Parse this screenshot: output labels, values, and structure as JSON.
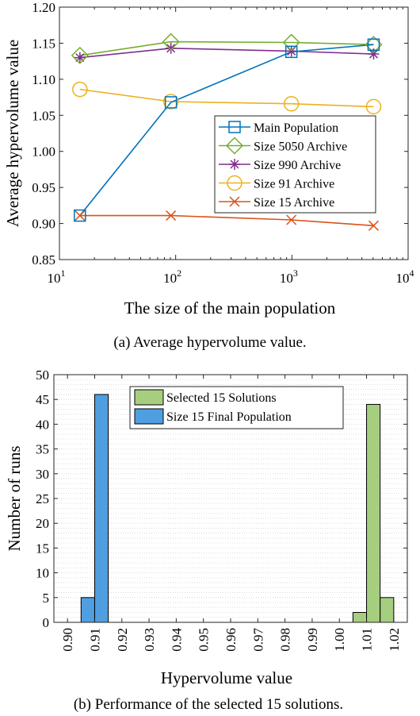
{
  "chart_data": [
    {
      "type": "line",
      "xscale": "log",
      "xlim": [
        10,
        10000
      ],
      "ylim": [
        0.85,
        1.2
      ],
      "xlabel": "The size of the main population",
      "ylabel": "Average hypervolume value",
      "caption": "(a) Average hypervolume value.",
      "xticks": [
        10,
        100,
        1000,
        10000
      ],
      "xtick_labels": [
        {
          "base": "10",
          "exp": "1"
        },
        {
          "base": "10",
          "exp": "2"
        },
        {
          "base": "10",
          "exp": "3"
        },
        {
          "base": "10",
          "exp": "4"
        }
      ],
      "yticks": [
        0.85,
        0.9,
        0.95,
        1.0,
        1.05,
        1.1,
        1.15,
        1.2
      ],
      "ytick_labels": [
        "0.85",
        "0.90",
        "0.95",
        "1.00",
        "1.05",
        "1.10",
        "1.15",
        "1.20"
      ],
      "grid": false,
      "legend_position": "right",
      "x": [
        15,
        91,
        990,
        5050
      ],
      "series": [
        {
          "name": "Main Population",
          "color": "#0072BD",
          "marker": "square",
          "values": [
            0.911,
            1.068,
            1.138,
            1.148
          ]
        },
        {
          "name": "Size 5050 Archive",
          "color": "#77AC30",
          "marker": "diamond",
          "values": [
            1.133,
            1.152,
            1.151,
            1.148
          ]
        },
        {
          "name": "Size 990 Archive",
          "color": "#7E2F8E",
          "marker": "asterisk",
          "values": [
            1.13,
            1.143,
            1.139,
            1.135
          ]
        },
        {
          "name": "Size 91 Archive",
          "color": "#EDB120",
          "marker": "circle",
          "values": [
            1.086,
            1.069,
            1.066,
            1.062
          ]
        },
        {
          "name": "Size 15 Archive",
          "color": "#D95319",
          "marker": "x",
          "values": [
            0.911,
            0.911,
            0.905,
            0.897
          ]
        }
      ]
    },
    {
      "type": "bar",
      "subtype": "histogram",
      "xlim": [
        0.895,
        1.025
      ],
      "ylim": [
        0,
        50
      ],
      "xlabel": "Hypervolume value",
      "ylabel": "Number of runs",
      "caption": "(b) Performance of the selected 15 solutions.",
      "bin_width": 0.005,
      "xticks": [
        0.9,
        0.91,
        0.92,
        0.93,
        0.94,
        0.95,
        0.96,
        0.97,
        0.98,
        0.99,
        1.0,
        1.01,
        1.02
      ],
      "xtick_labels": [
        "0.90",
        "0.91",
        "0.92",
        "0.93",
        "0.94",
        "0.95",
        "0.96",
        "0.97",
        "0.98",
        "0.99",
        "1.00",
        "1.01",
        "1.02"
      ],
      "yticks": [
        0,
        5,
        10,
        15,
        20,
        25,
        30,
        35,
        40,
        45,
        50
      ],
      "ytick_labels": [
        "0",
        "5",
        "10",
        "15",
        "20",
        "25",
        "30",
        "35",
        "40",
        "45",
        "50"
      ],
      "grid": true,
      "legend_position": "top-right",
      "series": [
        {
          "name": "Selected 15 Solutions",
          "color": "#A6CE7F",
          "bins": [
            {
              "start": 1.005,
              "count": 2
            },
            {
              "start": 1.01,
              "count": 44
            },
            {
              "start": 1.015,
              "count": 5
            }
          ]
        },
        {
          "name": "Size 15 Final Population",
          "color": "#4F9FE0",
          "bins": [
            {
              "start": 0.905,
              "count": 5
            },
            {
              "start": 0.91,
              "count": 46
            }
          ]
        }
      ]
    }
  ]
}
